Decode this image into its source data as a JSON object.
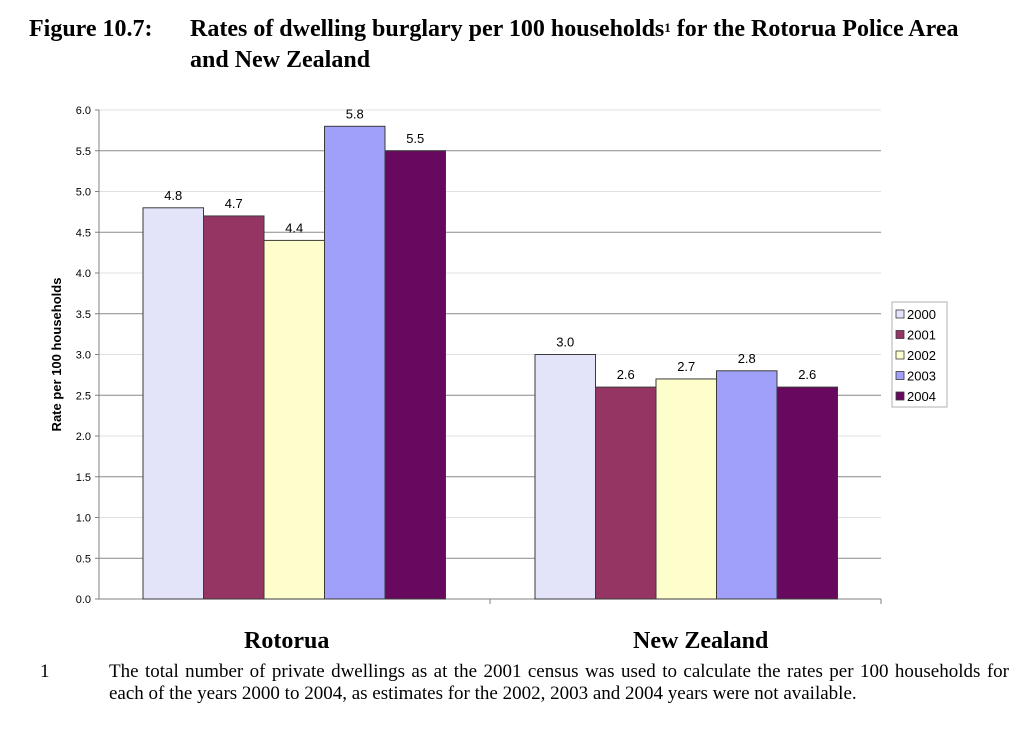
{
  "figure": {
    "number": "Figure 10.7:",
    "title_main": "Rates of dwelling burglary per 100 households",
    "title_sup": "1",
    "title_rest": " for the Rotorua Police Area and New Zealand"
  },
  "chart_data": {
    "type": "bar",
    "title": "Rates of dwelling burglary per 100 households for the Rotorua Police Area and New Zealand",
    "xlabel": "",
    "ylabel": "Rate per 100 households",
    "ylim": [
      0,
      6
    ],
    "yticks": [
      "0.0",
      "0.5",
      "1.0",
      "1.5",
      "2.0",
      "2.5",
      "3.0",
      "3.5",
      "4.0",
      "4.5",
      "5.0",
      "5.5",
      "6.0"
    ],
    "ytick_values": [
      0,
      0.5,
      1,
      1.5,
      2,
      2.5,
      3,
      3.5,
      4,
      4.5,
      5,
      5.5,
      6
    ],
    "grid": true,
    "legend_position": "right",
    "categories": [
      "Rotorua",
      "New Zealand"
    ],
    "series": [
      {
        "name": "2000",
        "color": "#e3e3fa",
        "values": [
          4.8,
          3.0
        ],
        "labels": [
          "4.8",
          "3.0"
        ]
      },
      {
        "name": "2001",
        "color": "#953563",
        "values": [
          4.7,
          2.6
        ],
        "labels": [
          "4.7",
          "2.6"
        ]
      },
      {
        "name": "2002",
        "color": "#fefdcc",
        "values": [
          4.4,
          2.7
        ],
        "labels": [
          "4.4",
          "2.7"
        ]
      },
      {
        "name": "2003",
        "color": "#a0a0fb",
        "values": [
          5.8,
          2.8
        ],
        "labels": [
          "5.8",
          "2.8"
        ]
      },
      {
        "name": "2004",
        "color": "#670a5f",
        "values": [
          5.5,
          2.6
        ],
        "labels": [
          "5.5",
          "2.6"
        ]
      }
    ]
  },
  "footnote": {
    "number": "1",
    "text": "The total number of private dwellings as at the 2001 census was used to calculate the rates per 100 households for each of the years 2000 to 2004, as estimates for the 2002, 2003 and 2004 years were not available."
  }
}
